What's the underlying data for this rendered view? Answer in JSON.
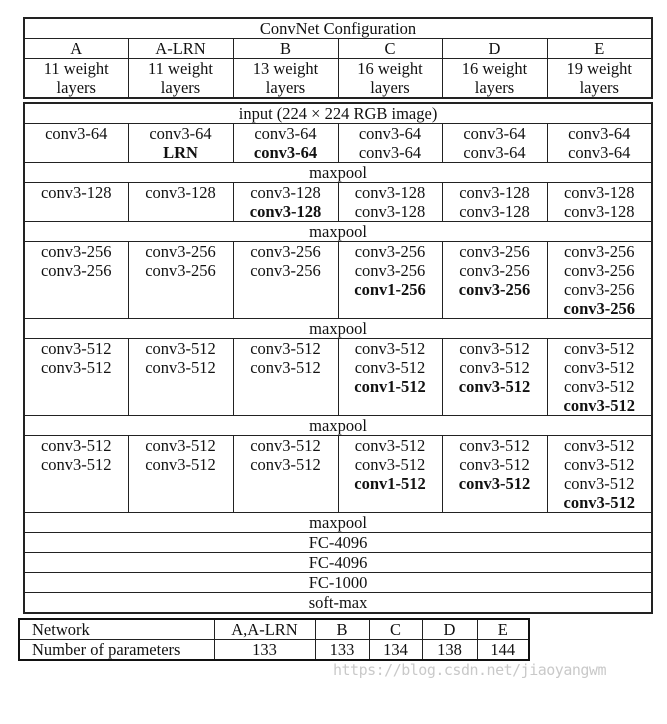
{
  "title": "ConvNet Configuration",
  "configs": [
    {
      "name": "A",
      "depth": [
        "11 weight",
        "layers"
      ]
    },
    {
      "name": "A-LRN",
      "depth": [
        "11 weight",
        "layers"
      ]
    },
    {
      "name": "B",
      "depth": [
        "13 weight",
        "layers"
      ]
    },
    {
      "name": "C",
      "depth": [
        "16 weight",
        "layers"
      ]
    },
    {
      "name": "D",
      "depth": [
        "16 weight",
        "layers"
      ]
    },
    {
      "name": "E",
      "depth": [
        "19 weight",
        "layers"
      ]
    }
  ],
  "input": "input (224 × 224 RGB image)",
  "rows": [
    {
      "type": "block",
      "height": 45,
      "cells": [
        [
          {
            "t": "conv3-64"
          }
        ],
        [
          {
            "t": "conv3-64"
          },
          {
            "t": "LRN",
            "b": true
          }
        ],
        [
          {
            "t": "conv3-64"
          },
          {
            "t": "conv3-64",
            "b": true
          }
        ],
        [
          {
            "t": "conv3-64"
          },
          {
            "t": "conv3-64"
          }
        ],
        [
          {
            "t": "conv3-64"
          },
          {
            "t": "conv3-64"
          }
        ],
        [
          {
            "t": "conv3-64"
          },
          {
            "t": "conv3-64"
          }
        ]
      ]
    },
    {
      "type": "span",
      "text": "maxpool"
    },
    {
      "type": "block",
      "height": 42,
      "cells": [
        [
          {
            "t": "conv3-128"
          }
        ],
        [
          {
            "t": "conv3-128"
          }
        ],
        [
          {
            "t": "conv3-128"
          },
          {
            "t": "conv3-128",
            "b": true
          }
        ],
        [
          {
            "t": "conv3-128"
          },
          {
            "t": "conv3-128"
          }
        ],
        [
          {
            "t": "conv3-128"
          },
          {
            "t": "conv3-128"
          }
        ],
        [
          {
            "t": "conv3-128"
          },
          {
            "t": "conv3-128"
          }
        ]
      ]
    },
    {
      "type": "span",
      "text": "maxpool"
    },
    {
      "type": "block",
      "height": 84,
      "cells": [
        [
          {
            "t": "conv3-256"
          },
          {
            "t": "conv3-256"
          }
        ],
        [
          {
            "t": "conv3-256"
          },
          {
            "t": "conv3-256"
          }
        ],
        [
          {
            "t": "conv3-256"
          },
          {
            "t": "conv3-256"
          }
        ],
        [
          {
            "t": "conv3-256"
          },
          {
            "t": "conv3-256"
          },
          {
            "t": "conv1-256",
            "b": true
          }
        ],
        [
          {
            "t": "conv3-256"
          },
          {
            "t": "conv3-256"
          },
          {
            "t": "conv3-256",
            "b": true
          }
        ],
        [
          {
            "t": "conv3-256"
          },
          {
            "t": "conv3-256"
          },
          {
            "t": "conv3-256"
          },
          {
            "t": "conv3-256",
            "b": true
          }
        ]
      ]
    },
    {
      "type": "span",
      "text": "maxpool"
    },
    {
      "type": "block",
      "height": 84,
      "cells": [
        [
          {
            "t": "conv3-512"
          },
          {
            "t": "conv3-512"
          }
        ],
        [
          {
            "t": "conv3-512"
          },
          {
            "t": "conv3-512"
          }
        ],
        [
          {
            "t": "conv3-512"
          },
          {
            "t": "conv3-512"
          }
        ],
        [
          {
            "t": "conv3-512"
          },
          {
            "t": "conv3-512"
          },
          {
            "t": "conv1-512",
            "b": true
          }
        ],
        [
          {
            "t": "conv3-512"
          },
          {
            "t": "conv3-512"
          },
          {
            "t": "conv3-512",
            "b": true
          }
        ],
        [
          {
            "t": "conv3-512"
          },
          {
            "t": "conv3-512"
          },
          {
            "t": "conv3-512"
          },
          {
            "t": "conv3-512",
            "b": true
          }
        ]
      ]
    },
    {
      "type": "span",
      "text": "maxpool"
    },
    {
      "type": "block",
      "height": 84,
      "cells": [
        [
          {
            "t": "conv3-512"
          },
          {
            "t": "conv3-512"
          }
        ],
        [
          {
            "t": "conv3-512"
          },
          {
            "t": "conv3-512"
          }
        ],
        [
          {
            "t": "conv3-512"
          },
          {
            "t": "conv3-512"
          }
        ],
        [
          {
            "t": "conv3-512"
          },
          {
            "t": "conv3-512"
          },
          {
            "t": "conv1-512",
            "b": true
          }
        ],
        [
          {
            "t": "conv3-512"
          },
          {
            "t": "conv3-512"
          },
          {
            "t": "conv3-512",
            "b": true
          }
        ],
        [
          {
            "t": "conv3-512"
          },
          {
            "t": "conv3-512"
          },
          {
            "t": "conv3-512"
          },
          {
            "t": "conv3-512",
            "b": true
          }
        ]
      ]
    },
    {
      "type": "span",
      "text": "maxpool"
    },
    {
      "type": "span",
      "text": "FC-4096"
    },
    {
      "type": "span",
      "text": "FC-4096"
    },
    {
      "type": "span",
      "text": "FC-1000"
    },
    {
      "type": "span",
      "text": "soft-max"
    }
  ],
  "params": {
    "header": [
      "Network",
      "A,A-LRN",
      "B",
      "C",
      "D",
      "E"
    ],
    "values": [
      "Number of parameters",
      "133",
      "133",
      "134",
      "138",
      "144"
    ]
  },
  "watermark": "https://blog.csdn.net/jiaoyangwm"
}
